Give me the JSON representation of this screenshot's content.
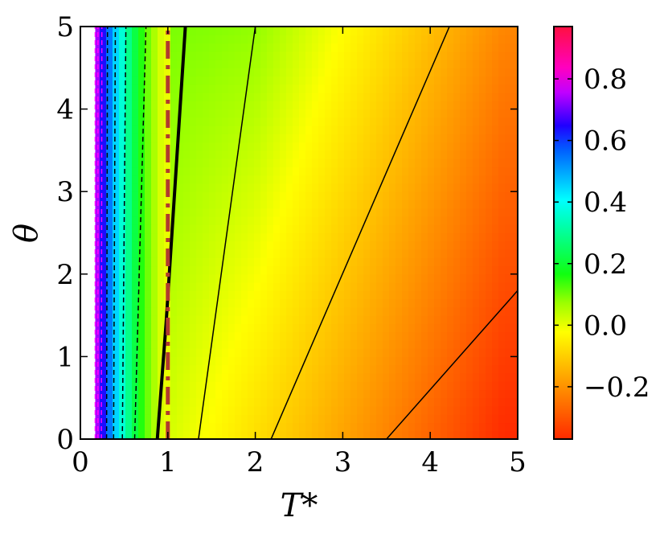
{
  "chart_data": {
    "type": "heatmap",
    "title": "",
    "xlabel": "T*",
    "ylabel": "θ",
    "xlim": [
      0,
      5
    ],
    "ylim": [
      0,
      5
    ],
    "x_ticks": [
      "0",
      "1",
      "2",
      "3",
      "4",
      "5"
    ],
    "y_ticks": [
      "0",
      "1",
      "2",
      "3",
      "4",
      "5"
    ],
    "colorbar": {
      "range": [
        -0.37,
        0.97
      ],
      "ticks": [
        {
          "value": -0.2,
          "label": "−0.2"
        },
        {
          "value": 0.0,
          "label": "0.0"
        },
        {
          "value": 0.2,
          "label": "0.2"
        },
        {
          "value": 0.4,
          "label": "0.4"
        },
        {
          "value": 0.6,
          "label": "0.6"
        },
        {
          "value": 0.8,
          "label": "0.8"
        }
      ],
      "colormap": "gist_rainbow (reversed)"
    },
    "zero_contour": {
      "style": "thick solid black",
      "points": [
        [
          0.88,
          0.0
        ],
        [
          0.98,
          1.4
        ],
        [
          1.2,
          5.0
        ]
      ]
    },
    "solid_contours": [
      {
        "points": [
          [
            1.35,
            0.0
          ],
          [
            2.0,
            5.0
          ]
        ]
      },
      {
        "points": [
          [
            2.18,
            0.0
          ],
          [
            4.22,
            5.0
          ]
        ]
      },
      {
        "points": [
          [
            3.5,
            0.0
          ],
          [
            5.0,
            1.8
          ]
        ]
      }
    ],
    "dashed_contours": [
      {
        "points": [
          [
            0.62,
            0.0
          ],
          [
            0.75,
            5.0
          ]
        ]
      },
      {
        "points": [
          [
            0.48,
            0.0
          ],
          [
            0.52,
            5.0
          ]
        ]
      },
      {
        "points": [
          [
            0.38,
            0.0
          ],
          [
            0.4,
            5.0
          ]
        ]
      },
      {
        "points": [
          [
            0.3,
            0.0
          ],
          [
            0.31,
            5.0
          ]
        ]
      },
      {
        "points": [
          [
            0.24,
            0.0
          ],
          [
            0.245,
            5.0
          ]
        ]
      },
      {
        "points": [
          [
            0.2,
            0.0
          ],
          [
            0.2,
            5.0
          ]
        ]
      },
      {
        "points": [
          [
            0.17,
            0.0
          ],
          [
            0.17,
            5.0
          ]
        ]
      }
    ],
    "reference_line": {
      "style": "dash-dot brown",
      "x": 1.0
    }
  }
}
